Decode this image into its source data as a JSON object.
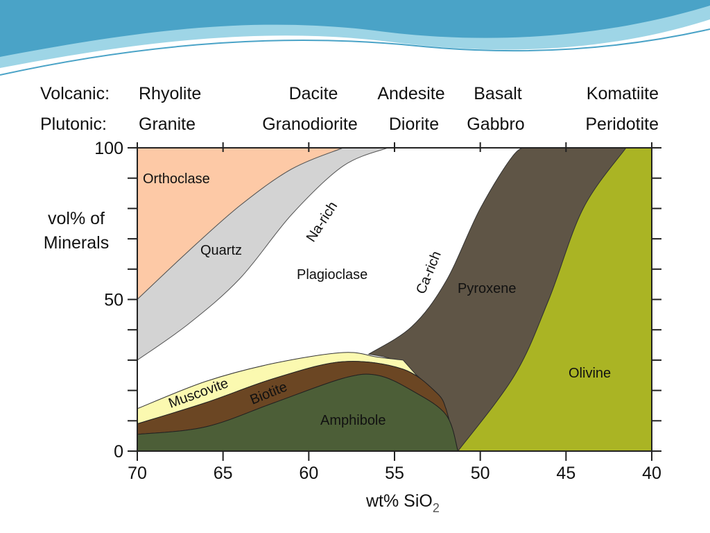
{
  "header": {
    "volcanic_label": "Volcanic:",
    "plutonic_label": "Plutonic:",
    "volcanic": [
      "Rhyolite",
      "Dacite",
      "Andesite",
      "Basalt",
      "Komatiite"
    ],
    "plutonic": [
      "Granite",
      "Granodiorite",
      "Diorite",
      "Gabbro",
      "Peridotite"
    ]
  },
  "colors": {
    "orthoclase": "#fdc9a6",
    "quartz": "#d3d3d3",
    "plagioclase": "#ffffff",
    "muscovite": "#fbf9b0",
    "biotite": "#6b4623",
    "amphibole": "#4c5e37",
    "pyroxene": "#5f5546",
    "olivine": "#aab424",
    "wave_dark": "#4aa3c7",
    "wave_light": "#9ed5e6"
  },
  "chart_data": {
    "type": "area",
    "xlabel": "wt% SiO",
    "xlabel_sub": "2",
    "ylabel_line1": "vol% of",
    "ylabel_line2": "Minerals",
    "x_ticks": [
      "70",
      "65",
      "60",
      "55",
      "50",
      "45",
      "40"
    ],
    "y_ticks": [
      "100",
      "50",
      "0"
    ],
    "xlim": [
      70,
      40
    ],
    "ylim": [
      0,
      100
    ],
    "field_labels": {
      "orthoclase": "Orthoclase",
      "quartz": "Quartz",
      "na_rich": "Na-rich",
      "plagioclase": "Plagioclase",
      "ca_rich": "Ca-rich",
      "pyroxene": "Pyroxene",
      "muscovite": "Muscovite",
      "biotite": "Biotite",
      "amphibole": "Amphibole",
      "olivine": "Olivine"
    },
    "boundaries": {
      "orthoclase_quartz": [
        [
          70,
          50
        ],
        [
          67,
          66
        ],
        [
          64,
          81
        ],
        [
          61,
          93
        ],
        [
          58,
          100
        ]
      ],
      "quartz_plagioclase": [
        [
          70,
          30
        ],
        [
          67,
          42
        ],
        [
          64,
          57
        ],
        [
          61,
          78
        ],
        [
          58,
          94
        ],
        [
          55.4,
          100
        ]
      ],
      "muscovite_top": [
        [
          70,
          14
        ],
        [
          66,
          23
        ],
        [
          62,
          29
        ],
        [
          58,
          32.5
        ],
        [
          56,
          31
        ],
        [
          54.5,
          30
        ]
      ],
      "biotite_top": [
        [
          70,
          9
        ],
        [
          66,
          16
        ],
        [
          62,
          24
        ],
        [
          58,
          29.5
        ],
        [
          54.5,
          27
        ],
        [
          52.5,
          19
        ],
        [
          52,
          14
        ]
      ],
      "amphibole_top": [
        [
          70,
          5.5
        ],
        [
          66,
          8
        ],
        [
          62,
          16
        ],
        [
          58,
          24
        ],
        [
          56,
          25
        ],
        [
          54,
          20
        ],
        [
          52,
          12
        ],
        [
          51.3,
          0
        ]
      ],
      "plagioclase_pyroxene": [
        [
          56.5,
          32
        ],
        [
          54,
          41
        ],
        [
          52,
          56
        ],
        [
          50,
          80
        ],
        [
          48,
          98
        ],
        [
          47,
          100
        ]
      ],
      "pyroxene_olivine": [
        [
          51.3,
          0
        ],
        [
          48,
          25
        ],
        [
          46,
          50
        ],
        [
          44,
          80
        ],
        [
          41.5,
          100
        ]
      ]
    }
  }
}
